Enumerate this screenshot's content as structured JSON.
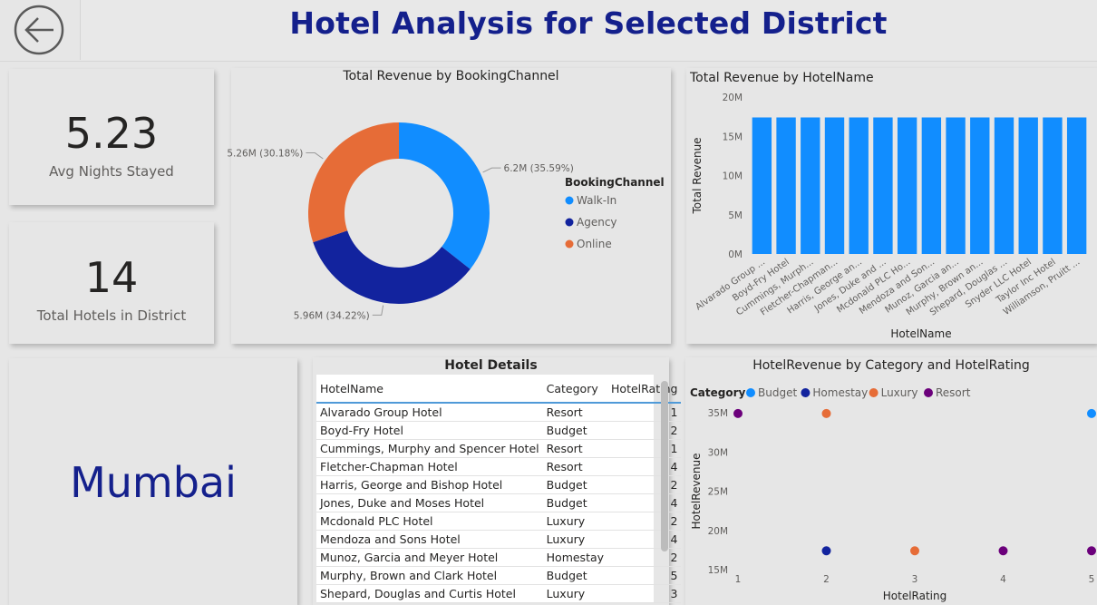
{
  "header": {
    "title": "Hotel Analysis for Selected District",
    "back_icon": "back-arrow-icon"
  },
  "kpis": {
    "avg_nights": {
      "value": "5.23",
      "label": "Avg Nights Stayed"
    },
    "total_hotels": {
      "value": "14",
      "label": "Total Hotels in District"
    }
  },
  "district": {
    "name": "Mumbai"
  },
  "donut": {
    "title": "Total Revenue by BookingChannel",
    "legend_title": "BookingChannel"
  },
  "revenue_bar": {
    "title": "Total Revenue by HotelName"
  },
  "hotel_details": {
    "title": "Hotel Details",
    "columns": [
      "HotelName",
      "Category",
      "HotelRating"
    ],
    "rows": [
      [
        "Alvarado Group Hotel",
        "Resort",
        "1"
      ],
      [
        "Boyd-Fry Hotel",
        "Budget",
        "2"
      ],
      [
        "Cummings, Murphy and Spencer Hotel",
        "Resort",
        "1"
      ],
      [
        "Fletcher-Chapman Hotel",
        "Resort",
        "4"
      ],
      [
        "Harris, George and Bishop Hotel",
        "Budget",
        "2"
      ],
      [
        "Jones, Duke and Moses Hotel",
        "Budget",
        "4"
      ],
      [
        "Mcdonald PLC Hotel",
        "Luxury",
        "2"
      ],
      [
        "Mendoza and Sons Hotel",
        "Luxury",
        "4"
      ],
      [
        "Munoz, Garcia and Meyer Hotel",
        "Homestay",
        "2"
      ],
      [
        "Murphy, Brown and Clark Hotel",
        "Budget",
        "5"
      ],
      [
        "Shepard, Douglas and Curtis Hotel",
        "Luxury",
        "3"
      ]
    ]
  },
  "scatter": {
    "title": "HotelRevenue by Category and HotelRating",
    "legend_title": "Category"
  },
  "chart_data": [
    {
      "type": "pie",
      "title": "Total Revenue by BookingChannel",
      "legend_title": "BookingChannel",
      "legend_position": "right",
      "series": [
        {
          "name": "Walk-In",
          "value": 6.2,
          "label": "6.2M (35.59%)",
          "color": "#118dff"
        },
        {
          "name": "Agency",
          "value": 5.96,
          "label": "5.96M (34.22%)",
          "color": "#12239e"
        },
        {
          "name": "Online",
          "value": 5.26,
          "label": "5.26M (30.18%)",
          "color": "#e66c37"
        }
      ]
    },
    {
      "type": "bar",
      "title": "Total Revenue by HotelName",
      "xlabel": "HotelName",
      "ylabel": "Total Revenue",
      "ylim": [
        0,
        20
      ],
      "yticks": [
        "0M",
        "5M",
        "10M",
        "15M",
        "20M"
      ],
      "color": "#118dff",
      "categories": [
        "Alvarado Group ...",
        "Boyd-Fry Hotel",
        "Cummings, Murph...",
        "Fletcher-Chapman...",
        "Harris, George an...",
        "Jones, Duke and ...",
        "Mcdonald PLC Ho...",
        "Mendoza and Son...",
        "Munoz, Garcia an...",
        "Murphy, Brown an...",
        "Shepard, Douglas ...",
        "Snyder LLC Hotel",
        "Taylor Inc Hotel",
        "Williamson, Pruitt ..."
      ],
      "values": [
        17.4,
        17.4,
        17.4,
        17.4,
        17.4,
        17.4,
        17.4,
        17.4,
        17.4,
        17.4,
        17.4,
        17.4,
        17.4,
        17.4
      ]
    },
    {
      "type": "scatter",
      "title": "HotelRevenue by Category and HotelRating",
      "xlabel": "HotelRating",
      "ylabel": "HotelRevenue",
      "xlim": [
        1,
        5
      ],
      "ylim": [
        15,
        35
      ],
      "xticks": [
        "1",
        "2",
        "3",
        "4",
        "5"
      ],
      "yticks": [
        "15M",
        "20M",
        "25M",
        "30M",
        "35M"
      ],
      "legend_title": "Category",
      "legend_position": "top-left",
      "series": [
        {
          "name": "Budget",
          "color": "#118dff",
          "points": [
            [
              5,
              34.9
            ]
          ]
        },
        {
          "name": "Homestay",
          "color": "#12239e",
          "points": [
            [
              2,
              17.4
            ]
          ]
        },
        {
          "name": "Luxury",
          "color": "#e66c37",
          "points": [
            [
              2,
              34.9
            ],
            [
              3,
              17.4
            ]
          ]
        },
        {
          "name": "Resort",
          "color": "#6b007b",
          "points": [
            [
              1,
              34.9
            ],
            [
              4,
              17.4
            ],
            [
              5,
              17.4
            ]
          ]
        }
      ]
    }
  ]
}
